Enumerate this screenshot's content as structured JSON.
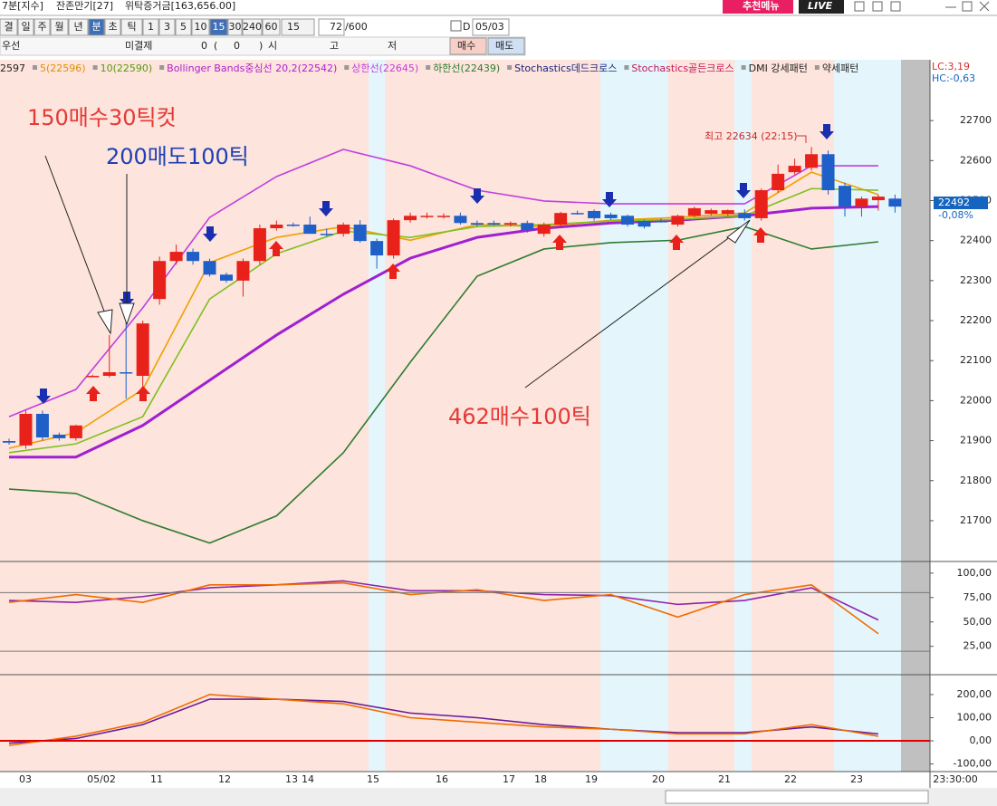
{
  "header": {
    "title": "7분[지수]",
    "expiry": "잔존만기[27]",
    "margin": "위탁증거금[163,656.00]",
    "menu": "추천메뉴",
    "live": "LIVE"
  },
  "toolbar": {
    "buttons": [
      "결",
      "일",
      "주",
      "월",
      "년",
      "분",
      "초",
      "틱",
      "1",
      "3",
      "5",
      "10",
      "15",
      "30",
      "240",
      "60"
    ],
    "period": "15",
    "count": "72",
    "count_max": "/600",
    "d": "D",
    "date": "05/03"
  },
  "order_row": {
    "priority": "우선",
    "open_interest": "미결제",
    "oi_value": "0",
    "oi_paren_open": "(",
    "oi_change": "0",
    "oi_paren_close": ")",
    "open": "시",
    "high": "고",
    "low": "저",
    "buy": "매수",
    "sell": "매도"
  },
  "legend": [
    {
      "text": "2597",
      "color": "#222222"
    },
    {
      "text": "5(22596)",
      "color": "#e09000"
    },
    {
      "text": "10(22590)",
      "color": "#5a9a10"
    },
    {
      "text": "Bollinger Bands중심선 20,2(22542)",
      "color": "#b020d0"
    },
    {
      "text": "상한선(22645)",
      "color": "#c040e0"
    },
    {
      "text": "하한선(22439)",
      "color": "#2e7d32"
    },
    {
      "text": "Stochastics데드크로스",
      "color": "#1a237e"
    },
    {
      "text": "Stochastics골든크로스",
      "color": "#c2185b"
    },
    {
      "text": "DMI 강세패턴",
      "color": "#222222"
    },
    {
      "text": "약세패턴",
      "color": "#222222"
    }
  ],
  "annotations": {
    "buy150": "150매수30틱컷",
    "sell200": "200매도100틱",
    "buy462": "462매수100틱",
    "high": "최고 22634 (22:15)"
  },
  "price_panel": {
    "ylim": [
      21598,
      22852
    ],
    "yticks": [
      22700,
      22600,
      22500,
      22400,
      22300,
      22200,
      22100,
      22000,
      21900,
      21800,
      21700
    ],
    "candles": [
      [
        21899,
        21905,
        21890,
        21895
      ],
      [
        21888,
        21975,
        21880,
        21967
      ],
      [
        21967,
        21975,
        21900,
        21908
      ],
      [
        21915,
        21920,
        21900,
        21906
      ],
      [
        21906,
        21940,
        21900,
        21938
      ],
      [
        22060,
        22065,
        22058,
        22062
      ],
      [
        22062,
        22164,
        22058,
        22071
      ],
      [
        22071,
        22254,
        22005,
        22069
      ],
      [
        22062,
        22200,
        22000,
        22193
      ],
      [
        22254,
        22360,
        22240,
        22349
      ],
      [
        22349,
        22390,
        22340,
        22372
      ],
      [
        22372,
        22380,
        22340,
        22349
      ],
      [
        22349,
        22355,
        22310,
        22315
      ],
      [
        22315,
        22320,
        22295,
        22300
      ],
      [
        22300,
        22355,
        22260,
        22349
      ],
      [
        22349,
        22440,
        22340,
        22431
      ],
      [
        22431,
        22450,
        22425,
        22440
      ],
      [
        22440,
        22445,
        22435,
        22438
      ],
      [
        22440,
        22460,
        22420,
        22417
      ],
      [
        22417,
        22430,
        22410,
        22415
      ],
      [
        22417,
        22445,
        22410,
        22440
      ],
      [
        22440,
        22451,
        22395,
        22399
      ],
      [
        22399,
        22405,
        22330,
        22363
      ],
      [
        22363,
        22455,
        22355,
        22451
      ],
      [
        22451,
        22470,
        22445,
        22462
      ],
      [
        22460,
        22470,
        22455,
        22462
      ],
      [
        22460,
        22468,
        22455,
        22462
      ],
      [
        22462,
        22470,
        22440,
        22444
      ],
      [
        22444,
        22450,
        22435,
        22440
      ],
      [
        22444,
        22450,
        22438,
        22440
      ],
      [
        22440,
        22448,
        22435,
        22444
      ],
      [
        22444,
        22450,
        22420,
        22426
      ],
      [
        22417,
        22445,
        22410,
        22440
      ],
      [
        22440,
        22472,
        22435,
        22469
      ],
      [
        22469,
        22475,
        22465,
        22467
      ],
      [
        22474,
        22478,
        22450,
        22456
      ],
      [
        22465,
        22470,
        22452,
        22456
      ],
      [
        22462,
        22465,
        22435,
        22440
      ],
      [
        22449,
        22452,
        22430,
        22435
      ],
      [
        22449,
        22455,
        22445,
        22448
      ],
      [
        22440,
        22465,
        22435,
        22462
      ],
      [
        22462,
        22485,
        22458,
        22481
      ],
      [
        22467,
        22480,
        22462,
        22476
      ],
      [
        22467,
        22478,
        22462,
        22476
      ],
      [
        22469,
        22478,
        22450,
        22456
      ],
      [
        22456,
        22530,
        22450,
        22526
      ],
      [
        22526,
        22590,
        22520,
        22567
      ],
      [
        22571,
        22605,
        22565,
        22587
      ],
      [
        22582,
        22634,
        22575,
        22616
      ],
      [
        22616,
        22625,
        22515,
        22526
      ],
      [
        22537,
        22545,
        22460,
        22485
      ],
      [
        22485,
        22510,
        22460,
        22505
      ],
      [
        22501,
        22515,
        22475,
        22510
      ],
      [
        22505,
        22515,
        22470,
        22485
      ]
    ],
    "line_x": [
      0,
      4,
      8,
      12,
      16,
      20,
      24,
      28,
      32,
      36,
      40,
      44,
      48,
      52
    ],
    "lines": [
      {
        "color": "#c040e0",
        "values": [
          21960,
          22028,
          22232,
          22458,
          22560,
          22628,
          22587,
          22526,
          22499,
          22492,
          22492,
          22492,
          22587,
          22587
        ]
      },
      {
        "color": "#a020d0",
        "values": [
          21859,
          21859,
          21938,
          22051,
          22164,
          22266,
          22356,
          22408,
          22431,
          22444,
          22451,
          22462,
          22481,
          22485
        ]
      },
      {
        "color": "#2e7d32",
        "values": [
          21779,
          21768,
          21700,
          21644,
          21712,
          21870,
          22096,
          22311,
          22379,
          22395,
          22401,
          22435,
          22379,
          22397
        ]
      },
      {
        "color": "#f0a000",
        "values": [
          21881,
          21920,
          22028,
          22345,
          22408,
          22435,
          22401,
          22440,
          22435,
          22451,
          22458,
          22469,
          22571,
          22515
        ]
      },
      {
        "color": "#80c020",
        "values": [
          21870,
          21892,
          21960,
          22254,
          22367,
          22424,
          22408,
          22435,
          22440,
          22449,
          22453,
          22462,
          22530,
          22526
        ]
      }
    ],
    "lc": "LC:3,19",
    "hc": "HC:-0,63",
    "current": "22492",
    "change": "-0,08%"
  },
  "stoch_panel": {
    "ylim": [
      -4,
      111
    ],
    "yticks": [
      {
        "value": 100,
        "label": "100,00"
      },
      {
        "value": 75,
        "label": "75,00"
      },
      {
        "value": 50,
        "label": "50,00"
      },
      {
        "value": 25,
        "label": "25,00"
      }
    ],
    "levels": [
      80,
      20
    ],
    "line_x": [
      0,
      4,
      8,
      12,
      16,
      20,
      24,
      28,
      32,
      36,
      40,
      44,
      48,
      52
    ],
    "lines": [
      {
        "color": "#8e24aa",
        "values": [
          72,
          70,
          76,
          85,
          88,
          92,
          82,
          82,
          78,
          77,
          68,
          72,
          85,
          52
        ]
      },
      {
        "color": "#ef6c00",
        "values": [
          70,
          78,
          70,
          88,
          88,
          90,
          78,
          83,
          72,
          78,
          55,
          78,
          88,
          38
        ]
      }
    ]
  },
  "dmi_panel": {
    "ylim": [
      -133,
      282
    ],
    "yticks": [
      {
        "value": 200,
        "label": "200,00"
      },
      {
        "value": 100,
        "label": "100,00"
      },
      {
        "value": 0,
        "label": "0,00"
      },
      {
        "value": -100,
        "label": "-100,00"
      }
    ],
    "baseline": 0,
    "line_x": [
      0,
      4,
      8,
      12,
      16,
      20,
      24,
      28,
      32,
      36,
      40,
      44,
      48,
      52
    ],
    "lines": [
      {
        "color": "#6a1b9a",
        "values": [
          -10,
          10,
          70,
          180,
          180,
          170,
          120,
          100,
          70,
          50,
          35,
          35,
          60,
          30
        ]
      },
      {
        "color": "#ef6c00",
        "values": [
          -20,
          20,
          80,
          200,
          180,
          160,
          100,
          80,
          60,
          50,
          30,
          30,
          70,
          20
        ]
      }
    ]
  },
  "time_axis": [
    "03",
    "05/02",
    "11",
    "12",
    "13",
    "14",
    "15",
    "16",
    "17",
    "18",
    "19",
    "20",
    "21",
    "22",
    "23",
    "23:30:00"
  ]
}
